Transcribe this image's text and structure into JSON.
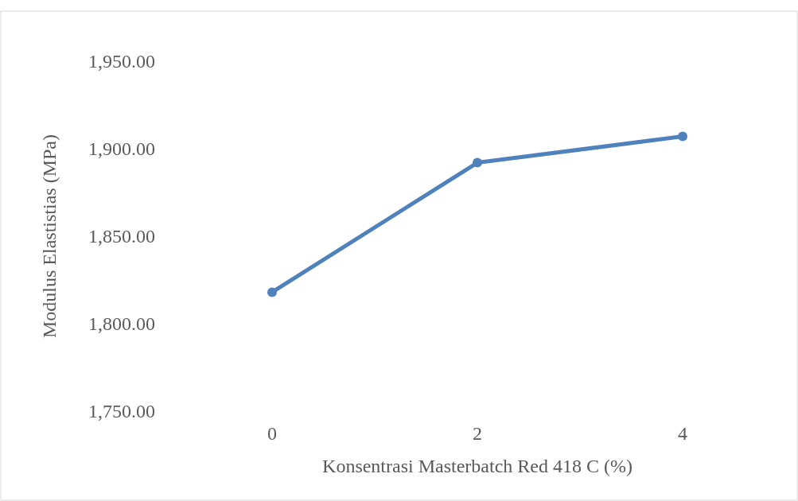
{
  "chart_data": {
    "type": "line",
    "xlabel": "Konsentrasi Masterbatch Red 418 C (%)",
    "ylabel": "Modulus Elastistias (MPa)",
    "categories": [
      "0",
      "2",
      "4"
    ],
    "series": [
      {
        "color": "#4f81bd",
        "values": [
          1818,
          1892,
          1907
        ]
      }
    ],
    "ylim": [
      1750,
      1950
    ],
    "yticks": [
      {
        "value": 1750,
        "label": "1,750.00"
      },
      {
        "value": 1800,
        "label": "1,800.00"
      },
      {
        "value": 1850,
        "label": "1,850.00"
      },
      {
        "value": 1900,
        "label": "1,900.00"
      },
      {
        "value": 1950,
        "label": "1,950.00"
      }
    ],
    "marker": "circle"
  }
}
